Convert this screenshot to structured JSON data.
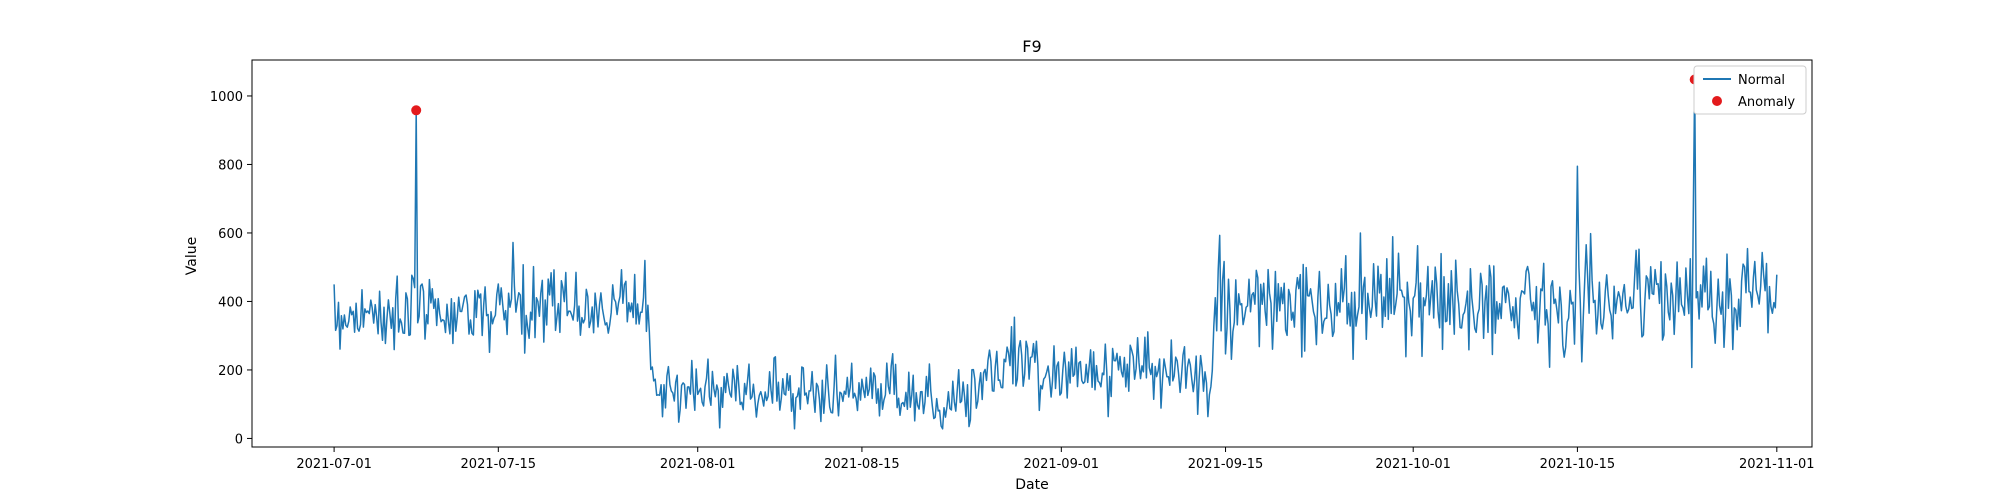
{
  "chart_data": {
    "type": "line",
    "title": "F9",
    "xlabel": "Date",
    "ylabel": "Value",
    "x_range": [
      "2021-06-24",
      "2021-11-04"
    ],
    "ylim": [
      -25,
      1105
    ],
    "x_ticks": [
      "2021-07-01",
      "2021-07-15",
      "2021-08-01",
      "2021-08-15",
      "2021-09-01",
      "2021-09-15",
      "2021-10-01",
      "2021-10-15",
      "2021-11-01"
    ],
    "y_ticks": [
      0,
      200,
      400,
      600,
      800,
      1000
    ],
    "grid": false,
    "legend_position": "top-right",
    "series": [
      {
        "name": "Normal",
        "kind": "line",
        "color": "#1f77b4",
        "sampling": "every 3 hours, 2021-07-01 to 2021-11-01",
        "segments": [
          {
            "start": "2021-07-01",
            "end": "2021-07-28",
            "mean_start": 360,
            "mean_end": 390,
            "noise": 55
          },
          {
            "start": "2021-07-28",
            "end": "2021-08-25",
            "mean_start": 150,
            "mean_end": 120,
            "noise": 45
          },
          {
            "start": "2021-08-25",
            "end": "2021-09-14",
            "mean_start": 210,
            "mean_end": 190,
            "noise": 55
          },
          {
            "start": "2021-09-14",
            "end": "2021-11-01",
            "mean_start": 380,
            "mean_end": 420,
            "noise": 70
          }
        ],
        "spikes": [
          {
            "date": "2021-07-08",
            "value": 958
          },
          {
            "date": "2021-10-15",
            "value": 795
          },
          {
            "date": "2021-10-25",
            "value": 1048
          }
        ]
      },
      {
        "name": "Anomaly",
        "kind": "scatter",
        "color": "#e31a1c",
        "points": [
          {
            "x": "2021-07-08",
            "y": 958
          },
          {
            "x": "2021-10-25",
            "y": 1048
          }
        ]
      }
    ]
  }
}
